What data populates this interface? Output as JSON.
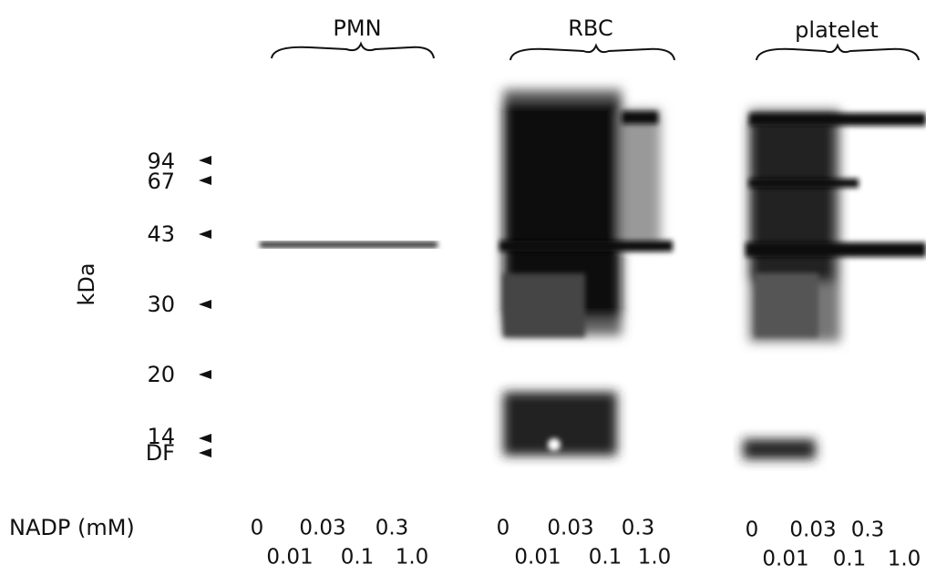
{
  "groups": [
    {
      "label": "PMN",
      "concentrations_top": [
        "0",
        "0.03",
        "0.3"
      ],
      "concentrations_bottom": [
        "0.01",
        "0.1",
        "1.0"
      ]
    },
    {
      "label": "RBC",
      "concentrations_top": [
        "0",
        "0.03",
        "0.3"
      ],
      "concentrations_bottom": [
        "0.01",
        "0.1",
        "1.0"
      ]
    },
    {
      "label": "platelet",
      "concentrations_top": [
        "0",
        "0.03",
        "0.3"
      ],
      "concentrations_bottom": [
        "0.01",
        "0.1",
        "1.0"
      ]
    }
  ],
  "markers": [
    "94",
    "67",
    "43",
    "30",
    "20",
    "14",
    "DF"
  ],
  "y_axis_label": "kDa",
  "x_axis_label": "NADP (mM)"
}
